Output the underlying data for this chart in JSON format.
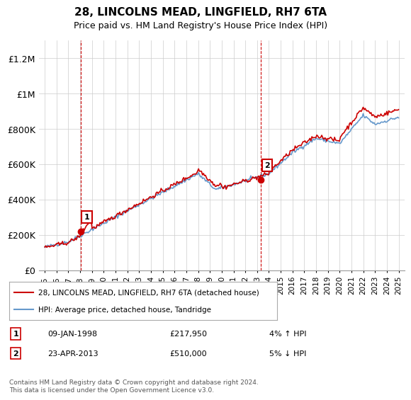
{
  "title": "28, LINCOLNS MEAD, LINGFIELD, RH7 6TA",
  "subtitle": "Price paid vs. HM Land Registry's House Price Index (HPI)",
  "legend_line1": "28, LINCOLNS MEAD, LINGFIELD, RH7 6TA (detached house)",
  "legend_line2": "HPI: Average price, detached house, Tandridge",
  "transaction1_date": "09-JAN-1998",
  "transaction1_price": 217950,
  "transaction1_hpi": "4% ↑ HPI",
  "transaction2_date": "23-APR-2013",
  "transaction2_price": 510000,
  "transaction2_hpi": "5% ↓ HPI",
  "footer": "Contains HM Land Registry data © Crown copyright and database right 2024.\nThis data is licensed under the Open Government Licence v3.0.",
  "line_color_red": "#cc0000",
  "line_color_blue": "#6699cc",
  "dashed_color": "#cc0000",
  "background_color": "#ffffff",
  "grid_color": "#cccccc",
  "ylim": [
    0,
    1300000
  ],
  "yticks": [
    0,
    200000,
    400000,
    600000,
    800000,
    1000000,
    1200000
  ],
  "ytick_labels": [
    "£0",
    "£200K",
    "£400K",
    "£600K",
    "£800K",
    "£1M",
    "£1.2M"
  ],
  "xstart_year": 1995,
  "xend_year": 2025,
  "transaction1_year": 1998.04,
  "transaction2_year": 2013.31
}
